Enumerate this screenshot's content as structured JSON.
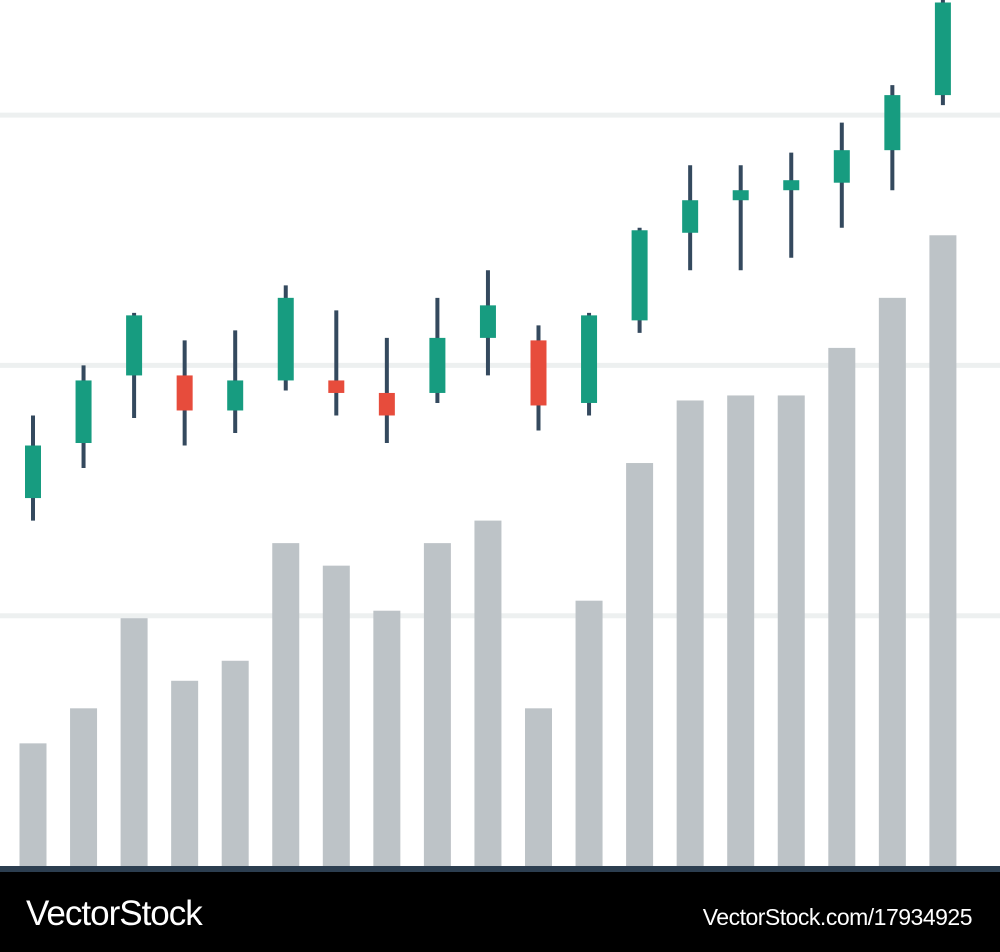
{
  "chart_data": {
    "type": "candlestick",
    "ylim": [
      0,
      3.46
    ],
    "yticks": [
      1,
      2,
      3
    ],
    "grid": true,
    "grid_color": "#edf0f0",
    "up_color": "#179c80",
    "down_color": "#e74c3c",
    "wick_color": "#34495e",
    "open": [
      1.47,
      1.69,
      1.96,
      1.96,
      1.82,
      1.94,
      1.94,
      1.89,
      1.89,
      2.11,
      2.1,
      1.85,
      2.18,
      2.53,
      2.66,
      2.7,
      2.73,
      2.86,
      3.08
    ],
    "high": [
      1.8,
      2.0,
      2.21,
      2.1,
      2.14,
      2.32,
      2.22,
      2.11,
      2.27,
      2.38,
      2.16,
      2.21,
      2.55,
      2.8,
      2.8,
      2.85,
      2.97,
      3.12,
      3.46
    ],
    "low": [
      1.38,
      1.59,
      1.79,
      1.68,
      1.73,
      1.9,
      1.8,
      1.69,
      1.85,
      1.96,
      1.74,
      1.8,
      2.13,
      2.38,
      2.38,
      2.43,
      2.55,
      2.7,
      3.04
    ],
    "close": [
      1.68,
      1.94,
      2.2,
      1.82,
      1.94,
      2.27,
      1.89,
      1.8,
      2.11,
      2.24,
      1.84,
      2.2,
      2.54,
      2.66,
      2.7,
      2.74,
      2.86,
      3.08,
      3.45
    ],
    "volume": {
      "color": "#bdc3c7",
      "values": [
        0.49,
        0.63,
        0.99,
        0.74,
        0.82,
        1.29,
        1.2,
        1.02,
        1.29,
        1.38,
        0.63,
        1.06,
        1.61,
        1.86,
        1.88,
        1.88,
        2.07,
        2.27,
        2.52
      ]
    }
  },
  "watermark": {
    "brand": "VectorStock",
    "url": "VectorStock.com/17934925"
  }
}
